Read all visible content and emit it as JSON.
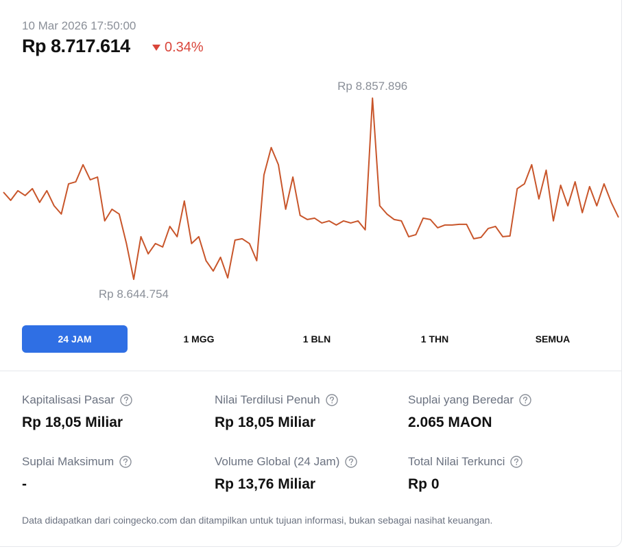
{
  "header": {
    "timestamp": "10 Mar 2026 17:50:00",
    "price": "Rp 8.717.614",
    "change": "0.34%"
  },
  "chart_data": {
    "type": "line",
    "color": "#c8552a",
    "values": [
      8747300,
      8737650,
      8748950,
      8743300,
      8751370,
      8735230,
      8748950,
      8731200,
      8721510,
      8757020,
      8759440,
      8779620,
      8761860,
      8765090,
      8713440,
      8727160,
      8721510,
      8686810,
      8644754,
      8694880,
      8674710,
      8686810,
      8682780,
      8706990,
      8694880,
      8736850,
      8686810,
      8694880,
      8666640,
      8654530,
      8670670,
      8646460,
      8690850,
      8692460,
      8686810,
      8666640,
      8767510,
      8799790,
      8779620,
      8727160,
      8765090,
      8719900,
      8715060,
      8716670,
      8711020,
      8713440,
      8708600,
      8713440,
      8711020,
      8713440,
      8702950,
      8857896,
      8731200,
      8721510,
      8715060,
      8713440,
      8694880,
      8697300,
      8716670,
      8715060,
      8705370,
      8708600,
      8708600,
      8709410,
      8709410,
      8692460,
      8694080,
      8704570,
      8706990,
      8694880,
      8695690,
      8751370,
      8757020,
      8779620,
      8739270,
      8773160,
      8713440,
      8755410,
      8731200,
      8759440,
      8723130,
      8753790,
      8731200,
      8757020,
      8735230,
      8717614
    ],
    "annotations": [
      {
        "value": 8857896,
        "label": "Rp 8.857.896"
      },
      {
        "value": 8644754,
        "label": "Rp 8.644.754"
      }
    ]
  },
  "timeframes": [
    "24 JAM",
    "1 MGG",
    "1 BLN",
    "1 THN",
    "SEMUA"
  ],
  "selected_timeframe": 0,
  "stats": [
    {
      "label": "Kapitalisasi Pasar",
      "value": "Rp 18,05 Miliar"
    },
    {
      "label": "Nilai Terdilusi Penuh",
      "value": "Rp 18,05 Miliar"
    },
    {
      "label": "Suplai yang Beredar",
      "value": "2.065 MAON"
    },
    {
      "label": "Suplai Maksimum",
      "value": "-"
    },
    {
      "label": "Volume Global (24 Jam)",
      "value": "Rp 13,76 Miliar"
    },
    {
      "label": "Total Nilai Terkunci",
      "value": "Rp 0"
    }
  ],
  "footnote": "Data didapatkan dari coingecko.com dan ditampilkan untuk tujuan informasi, bukan sebagai nasihat keuangan."
}
